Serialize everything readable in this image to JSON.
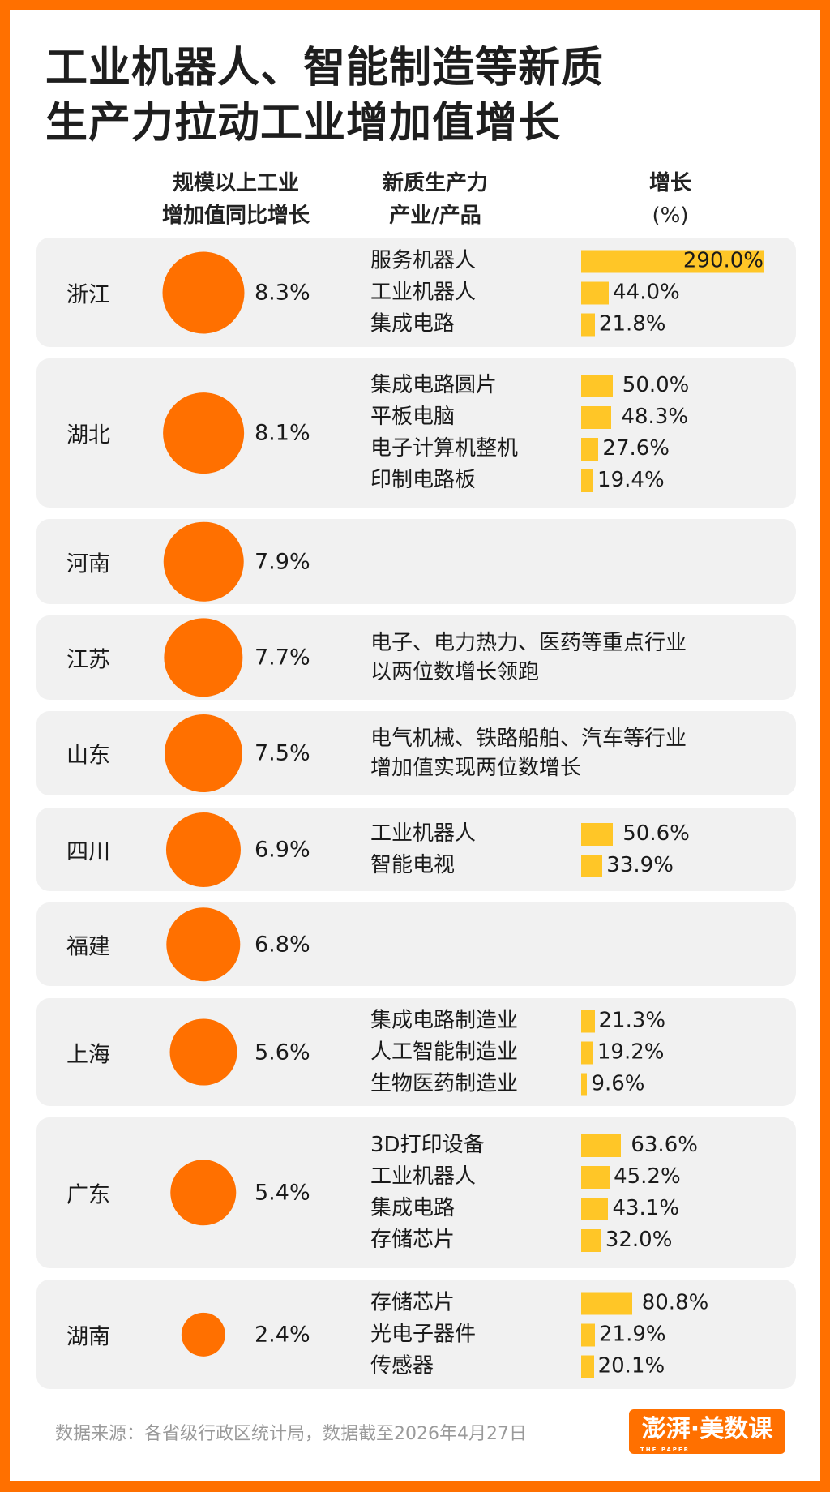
{
  "title": {
    "line1": "工业机器人、智能制造等新质",
    "line2": "生产力拉动工业增加值增长"
  },
  "headers": {
    "col1": [
      "规模以上工业",
      "增加值同比增长"
    ],
    "col2": [
      "新质生产力",
      "产业/产品"
    ],
    "col3": [
      "增长",
      "(%)"
    ]
  },
  "colors": {
    "frame": "#FF7000",
    "circle": "#FF7000",
    "bar": "#FFC627",
    "card": "#F1F1F1"
  },
  "chart_data": {
    "type": "table",
    "bar_max": 290.0,
    "rows": [
      {
        "province": "浙江",
        "growth": 8.3,
        "growth_label": "8.3%",
        "items": [
          {
            "name": "服务机器人",
            "value": 290.0,
            "label": "290.0%"
          },
          {
            "name": "工业机器人",
            "value": 44.0,
            "label": "44.0%"
          },
          {
            "name": "集成电路",
            "value": 21.8,
            "label": "21.8%"
          }
        ]
      },
      {
        "province": "湖北",
        "growth": 8.1,
        "growth_label": "8.1%",
        "items": [
          {
            "name": "集成电路圆片",
            "value": 50.0,
            "label": "50.0%"
          },
          {
            "name": "平板电脑",
            "value": 48.3,
            "label": "48.3%"
          },
          {
            "name": "电子计算机整机",
            "value": 27.6,
            "label": "27.6%"
          },
          {
            "name": "印制电路板",
            "value": 19.4,
            "label": "19.4%"
          }
        ]
      },
      {
        "province": "河南",
        "growth": 7.9,
        "growth_label": "7.9%",
        "items": []
      },
      {
        "province": "江苏",
        "growth": 7.7,
        "growth_label": "7.7%",
        "note": [
          "电子、电力热力、医药等重点行业",
          "以两位数增长领跑"
        ],
        "items": []
      },
      {
        "province": "山东",
        "growth": 7.5,
        "growth_label": "7.5%",
        "note": [
          "电气机械、铁路船舶、汽车等行业",
          "增加值实现两位数增长"
        ],
        "items": []
      },
      {
        "province": "四川",
        "growth": 6.9,
        "growth_label": "6.9%",
        "items": [
          {
            "name": "工业机器人",
            "value": 50.6,
            "label": "50.6%"
          },
          {
            "name": "智能电视",
            "value": 33.9,
            "label": "33.9%"
          }
        ]
      },
      {
        "province": "福建",
        "growth": 6.8,
        "growth_label": "6.8%",
        "items": []
      },
      {
        "province": "上海",
        "growth": 5.6,
        "growth_label": "5.6%",
        "items": [
          {
            "name": "集成电路制造业",
            "value": 21.3,
            "label": "21.3%"
          },
          {
            "name": "人工智能制造业",
            "value": 19.2,
            "label": "19.2%"
          },
          {
            "name": "生物医药制造业",
            "value": 9.6,
            "label": "9.6%"
          }
        ]
      },
      {
        "province": "广东",
        "growth": 5.4,
        "growth_label": "5.4%",
        "items": [
          {
            "name": "3D打印设备",
            "value": 63.6,
            "label": "63.6%"
          },
          {
            "name": "工业机器人",
            "value": 45.2,
            "label": "45.2%"
          },
          {
            "name": "集成电路",
            "value": 43.1,
            "label": "43.1%"
          },
          {
            "name": "存储芯片",
            "value": 32.0,
            "label": "32.0%"
          }
        ]
      },
      {
        "province": "湖南",
        "growth": 2.4,
        "growth_label": "2.4%",
        "items": [
          {
            "name": "存储芯片",
            "value": 80.8,
            "label": "80.8%"
          },
          {
            "name": "光电子器件",
            "value": 21.9,
            "label": "21.9%"
          },
          {
            "name": "传感器",
            "value": 20.1,
            "label": "20.1%"
          }
        ]
      }
    ]
  },
  "footer": {
    "source": "数据来源：各省级行政区统计局，数据截至2026年4月27日"
  },
  "logo": {
    "text": "澎湃·美数课",
    "sub": "THE PAPER"
  }
}
